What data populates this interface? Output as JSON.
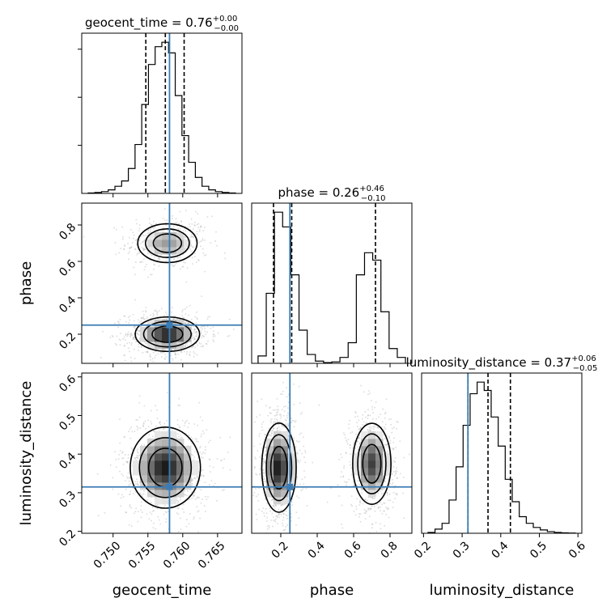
{
  "chart_data": {
    "type": "corner",
    "parameters": [
      {
        "key": "geocent_time",
        "label": "geocent_time",
        "range": [
          0.7455,
          0.7685
        ],
        "ticks": [
          "0.750",
          "0.755",
          "0.760",
          "0.765"
        ],
        "tick_values": [
          0.75,
          0.755,
          0.76,
          0.765
        ],
        "title": {
          "name": "geocent_time",
          "median": "0.76",
          "plus": "+0.00",
          "minus": "−0.00"
        },
        "quantiles": [
          0.7547,
          0.7575,
          0.7602
        ],
        "truth": 0.7581,
        "hist": [
          0.5,
          1,
          2,
          4,
          8,
          14,
          28,
          55,
          100,
          145,
          165,
          170,
          158,
          110,
          65,
          35,
          18,
          8,
          4,
          2,
          1,
          0.5
        ]
      },
      {
        "key": "phase",
        "label": "phase",
        "range": [
          0.04,
          0.92
        ],
        "ticks": [
          "0.2",
          "0.4",
          "0.6",
          "0.8"
        ],
        "tick_values": [
          0.2,
          0.4,
          0.6,
          0.8
        ],
        "title": {
          "name": "phase",
          "median": "0.26",
          "plus": "+0.46",
          "minus": "−0.10"
        },
        "quantiles": [
          0.16,
          0.26,
          0.72
        ],
        "truth": 0.25,
        "hist": [
          10,
          95,
          205,
          185,
          120,
          45,
          12,
          3,
          1,
          2,
          8,
          28,
          120,
          150,
          140,
          70,
          20,
          8
        ]
      },
      {
        "key": "luminosity_distance",
        "label": "luminosity_distance",
        "range": [
          0.195,
          0.61
        ],
        "ticks": [
          "0.2",
          "0.3",
          "0.4",
          "0.5",
          "0.6"
        ],
        "tick_values": [
          0.2,
          0.3,
          0.4,
          0.5,
          0.6
        ],
        "title": {
          "name": "luminosity_distance",
          "median": "0.37",
          "plus": "+0.06",
          "minus": "−0.05"
        },
        "quantiles": [
          0.315,
          0.367,
          0.425
        ],
        "truth": 0.315,
        "hist": [
          1,
          5,
          12,
          40,
          80,
          130,
          168,
          182,
          172,
          140,
          105,
          65,
          38,
          20,
          12,
          7,
          4,
          2,
          1,
          0.5,
          0.3
        ]
      }
    ],
    "pairs": [
      {
        "x": "geocent_time",
        "y": "phase",
        "modes": [
          {
            "cx": 0.7578,
            "cy": 0.7,
            "sx": 0.0022,
            "sy": 0.055,
            "w": 0.5
          },
          {
            "cx": 0.7578,
            "cy": 0.2,
            "sx": 0.0022,
            "sy": 0.045,
            "w": 1.0
          }
        ]
      },
      {
        "x": "geocent_time",
        "y": "luminosity_distance",
        "modes": [
          {
            "cx": 0.7575,
            "cy": 0.365,
            "sx": 0.0024,
            "sy": 0.05,
            "w": 1.0
          }
        ]
      },
      {
        "x": "phase",
        "y": "luminosity_distance",
        "modes": [
          {
            "cx": 0.19,
            "cy": 0.365,
            "sx": 0.045,
            "sy": 0.055,
            "w": 1.0
          },
          {
            "cx": 0.7,
            "cy": 0.375,
            "sx": 0.05,
            "sy": 0.05,
            "w": 0.85
          }
        ]
      }
    ]
  }
}
